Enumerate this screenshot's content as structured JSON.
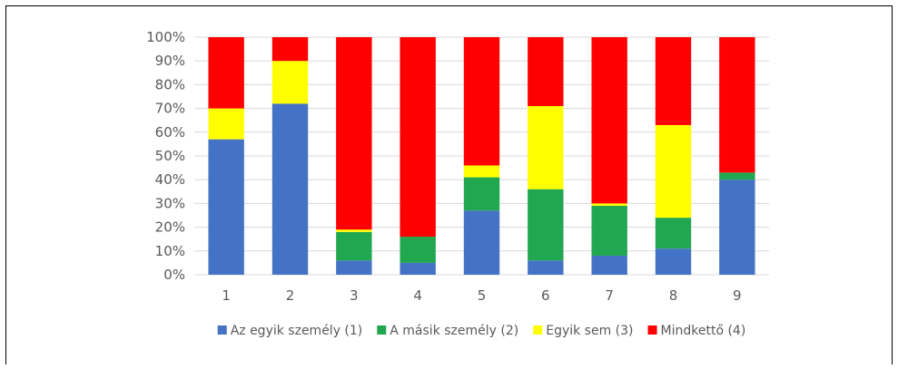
{
  "chart_data": {
    "type": "bar",
    "stacked": true,
    "normalized": true,
    "categories": [
      "1",
      "2",
      "3",
      "4",
      "5",
      "6",
      "7",
      "8",
      "9"
    ],
    "series": [
      {
        "name": "Az egyik személy (1)",
        "color": "#4472C4",
        "values": [
          57,
          72,
          6,
          5,
          27,
          6,
          8,
          11,
          40
        ]
      },
      {
        "name": "A másik személy (2)",
        "color": "#21A750",
        "values": [
          0,
          0,
          12,
          11,
          14,
          30,
          21,
          13,
          3
        ]
      },
      {
        "name": "Egyik sem (3)",
        "color": "#FFFF00",
        "values": [
          13,
          18,
          1,
          0,
          5,
          35,
          1,
          39,
          0
        ]
      },
      {
        "name": "Mindkettő (4)",
        "color": "#FF0000",
        "values": [
          30,
          10,
          81,
          84,
          54,
          29,
          70,
          37,
          57
        ]
      }
    ],
    "y_ticks": [
      "0%",
      "10%",
      "20%",
      "30%",
      "40%",
      "50%",
      "60%",
      "70%",
      "80%",
      "90%",
      "100%"
    ],
    "ylim": [
      0,
      100
    ],
    "grid": true,
    "legend_position": "bottom"
  }
}
